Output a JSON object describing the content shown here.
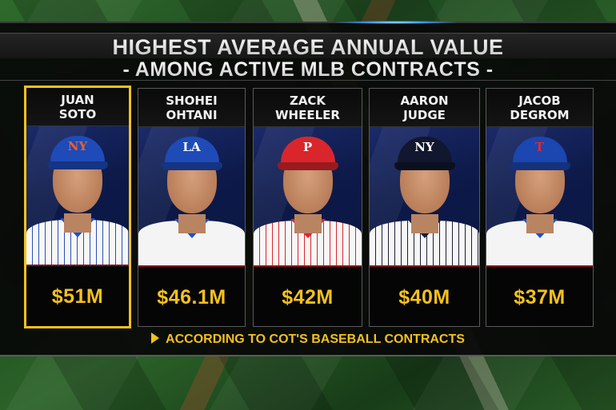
{
  "header": {
    "title": "HIGHEST AVERAGE ANNUAL VALUE",
    "subtitle": "- AMONG ACTIVE MLB CONTRACTS -"
  },
  "players": [
    {
      "first": "JUAN",
      "last": "SOTO",
      "value": "$51M",
      "team_logo": "NY",
      "cap_color": "#1e4bb8",
      "logo_color": "#f0602a",
      "jersey": "pinstripe",
      "stripe_color": "#2d4fb5",
      "collar_color": "#1f4fcc",
      "featured": true
    },
    {
      "first": "SHOHEI",
      "last": "OHTANI",
      "value": "$46.1M",
      "team_logo": "LA",
      "cap_color": "#1e4bb8",
      "logo_color": "#ffffff",
      "jersey": "plain",
      "stripe_color": "#ffffff",
      "collar_color": "#1f4fcc",
      "featured": false
    },
    {
      "first": "ZACK",
      "last": "WHEELER",
      "value": "$42M",
      "team_logo": "P",
      "cap_color": "#d9262c",
      "logo_color": "#ffffff",
      "jersey": "pinstripe",
      "stripe_color": "#d9262c",
      "collar_color": "#d9262c",
      "featured": false
    },
    {
      "first": "AARON",
      "last": "JUDGE",
      "value": "$40M",
      "team_logo": "NY",
      "cap_color": "#10172e",
      "logo_color": "#ffffff",
      "jersey": "pinstripe",
      "stripe_color": "#1b1f33",
      "collar_color": "#1b1f33",
      "featured": false
    },
    {
      "first": "JACOB",
      "last": "DEGROM",
      "value": "$37M",
      "team_logo": "T",
      "cap_color": "#1c46b0",
      "logo_color": "#e12a2f",
      "jersey": "plain",
      "stripe_color": "#ffffff",
      "collar_color": "#1f4fcc",
      "featured": false
    }
  ],
  "footer": {
    "source": "ACCORDING TO COT'S BASEBALL CONTRACTS"
  },
  "colors": {
    "accent": "#f2c21b",
    "value_text": "#f4c11c"
  }
}
